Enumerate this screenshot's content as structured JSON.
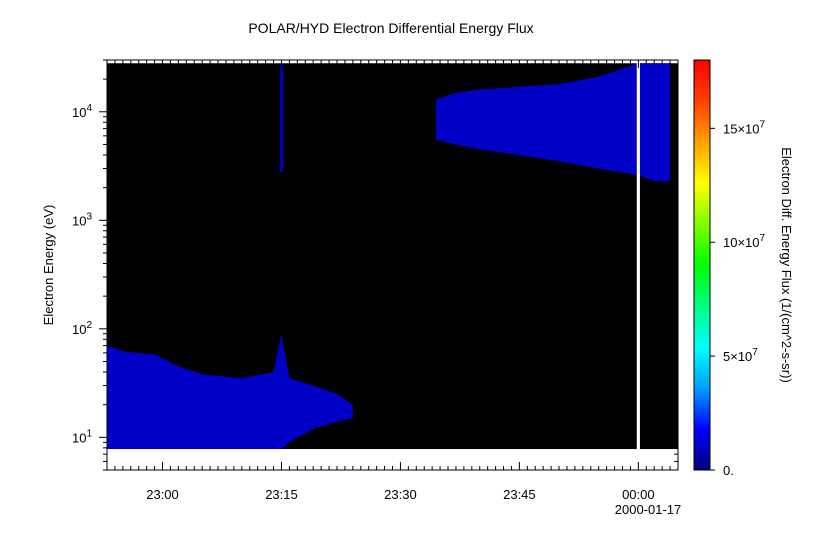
{
  "chart_data": {
    "type": "heatmap",
    "title": "POLAR/HYD  Electron Differential Energy Flux",
    "xlabel": "",
    "ylabel": "Electron Energy (eV)",
    "x_tick_labels": [
      "23:00",
      "23:15",
      "23:30",
      "23:45",
      "00:00"
    ],
    "x_date_label": "2000-01-17",
    "x_ticks_minutes": [
      0,
      15,
      30,
      45,
      60
    ],
    "xlim_minutes": [
      -7,
      65
    ],
    "y_scale": "log",
    "ylim": [
      5,
      30000
    ],
    "y_tick_values": [
      10,
      100,
      1000,
      10000
    ],
    "y_tick_labels": [
      {
        "base": "10",
        "exp": "1"
      },
      {
        "base": "10",
        "exp": "2"
      },
      {
        "base": "10",
        "exp": "3"
      },
      {
        "base": "10",
        "exp": "4"
      }
    ],
    "data_energy_range": [
      7.8,
      28000
    ],
    "colorbar": {
      "label": "Electron Diff. Energy Flux (1/(cm^2-s-sr))",
      "range": [
        0,
        180000000
      ],
      "ticks": [
        {
          "value": 0,
          "base": "0.",
          "exp": ""
        },
        {
          "value": 50000000,
          "base": "5×10",
          "exp": "7"
        },
        {
          "value": 100000000,
          "base": "10×10",
          "exp": "7"
        },
        {
          "value": 150000000,
          "base": "15×10",
          "exp": "7"
        }
      ],
      "colormap": [
        "#000080",
        "#0000ff",
        "#00a0ff",
        "#00ffff",
        "#00ff80",
        "#00ff00",
        "#80ff00",
        "#ffff00",
        "#ffa000",
        "#ff4000",
        "#ff0000"
      ]
    },
    "background_color": "#000000",
    "flux_regions": [
      {
        "name": "high-energy",
        "flux": 10000000,
        "t": [
          34.5,
          37,
          40,
          45,
          50,
          55,
          60,
          62,
          64
        ],
        "e_lo": [
          5500,
          5000,
          4500,
          4000,
          3500,
          3000,
          2600,
          2300,
          2300
        ],
        "e_hi": [
          13000,
          15000,
          16000,
          17000,
          18000,
          21000,
          28000,
          28000,
          28000
        ]
      },
      {
        "name": "low-energy",
        "flux": 10000000,
        "t": [
          -7,
          -5,
          -1,
          2,
          5,
          10,
          14,
          15,
          16,
          19,
          22,
          24
        ],
        "e_lo": [
          7.8,
          7.8,
          7.8,
          7.8,
          7.8,
          7.8,
          7.8,
          7.8,
          9,
          12,
          14,
          15
        ],
        "e_hi": [
          70,
          62,
          58,
          45,
          38,
          35,
          40,
          90,
          35,
          30,
          25,
          20
        ]
      },
      {
        "name": "spike-23:15",
        "flux": 8000000,
        "t": [
          14.8,
          15.2
        ],
        "e_lo": [
          2800,
          2800
        ],
        "e_hi": [
          28000,
          28000
        ]
      }
    ],
    "data_gaps_minutes": [
      [
        59.8,
        60.2
      ]
    ]
  }
}
